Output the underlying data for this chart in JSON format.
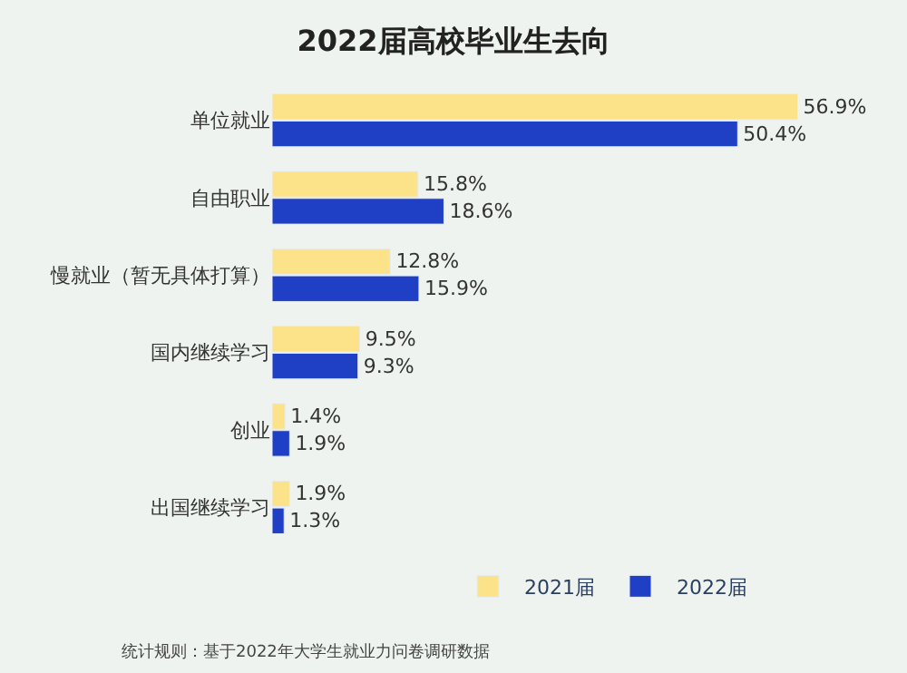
{
  "chart_data": {
    "type": "bar",
    "orientation": "horizontal",
    "title": "2022届高校毕业生去向",
    "categories": [
      "单位就业",
      "自由职业",
      "慢就业（暂无具体打算）",
      "国内继续学习",
      "创业",
      "出国继续学习"
    ],
    "series": [
      {
        "name": "2021届",
        "color": "#fce38a",
        "values": [
          56.9,
          15.8,
          12.8,
          9.5,
          1.4,
          1.9
        ],
        "value_labels": [
          "56.9%",
          "15.8%",
          "12.8%",
          "9.5%",
          "1.4%",
          "1.9%"
        ]
      },
      {
        "name": "2022届",
        "color": "#1f3fc4",
        "values": [
          50.4,
          18.6,
          15.9,
          9.3,
          1.9,
          1.3
        ],
        "value_labels": [
          "50.4%",
          "18.6%",
          "15.9%",
          "9.3%",
          "1.9%",
          "1.3%"
        ]
      }
    ],
    "tick_labels": "y",
    "grid": false,
    "legend": "bottom",
    "annotations": [
      "统计规则：基于2022年大学生就业力问卷调研数据"
    ]
  }
}
